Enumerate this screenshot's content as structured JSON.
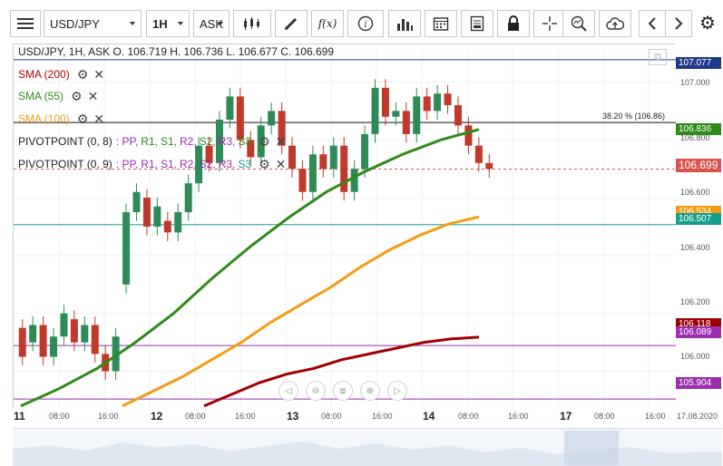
{
  "toolbar": {
    "menu_icon": "hamburger-icon",
    "symbol": "USD/JPY",
    "timeframe": "1H",
    "price_type": "ASK"
  },
  "header": {
    "info_line": "USD/JPY, 1H, ASK   O. 106.719 H. 106.736 L. 106.677 C. 106.699"
  },
  "indicators": [
    {
      "label": "SMA (200)",
      "color": "#b00000"
    },
    {
      "label": "SMA (55)",
      "color": "#2e8b1a"
    },
    {
      "label": "SMA (100)",
      "color": "#f39c12"
    }
  ],
  "pivots": [
    {
      "prefix": "PIVOTPOINT (0, 8)",
      "labels": [
        ": PP,",
        "R1,",
        "S1,",
        "R2,",
        "S2,",
        "R3,",
        "S3"
      ]
    },
    {
      "prefix": "PIVOTPOINT (0, 9)",
      "labels": [
        ": PP,",
        "R1,",
        "S1,",
        "R2,",
        "S2,",
        "R3,",
        "S3"
      ]
    }
  ],
  "pivot_colors": [
    "#9b2fae",
    "#2e8b1a",
    "#2e8b1a",
    "#9b2fae",
    "#2e8b1a",
    "#9b2fae",
    "#2e8b1a"
  ],
  "fib_label": "38.20 % (106.86)",
  "price_axis": [
    "107.000",
    "106.800",
    "106.600",
    "106.400",
    "106.200",
    "106.000"
  ],
  "price_tags": [
    {
      "text": "107.077",
      "bg": "#1f3a8a"
    },
    {
      "text": "106.836",
      "bg": "#2e8b1a"
    },
    {
      "text": "106.699",
      "bg": "#d9534f"
    },
    {
      "text": "106.534",
      "bg": "#f39c12"
    },
    {
      "text": "106.507",
      "bg": "#17a08b"
    },
    {
      "text": "106.118",
      "bg": "#a00000"
    },
    {
      "text": "106.089",
      "bg": "#9b2fae"
    },
    {
      "text": "105.904",
      "bg": "#9b2fae"
    }
  ],
  "time_axis": [
    {
      "text": "11",
      "big": true
    },
    {
      "text": "08:00"
    },
    {
      "text": "16:00"
    },
    {
      "text": "12",
      "big": true
    },
    {
      "text": "08:00"
    },
    {
      "text": "16:00"
    },
    {
      "text": "13",
      "big": true
    },
    {
      "text": "08:00"
    },
    {
      "text": "16:00"
    },
    {
      "text": "14",
      "big": true
    },
    {
      "text": "08:00"
    },
    {
      "text": "16:00"
    },
    {
      "text": "17",
      "big": true
    },
    {
      "text": "08:00"
    },
    {
      "text": "16:00"
    },
    {
      "text": "17.08.2020"
    }
  ],
  "chart_data": {
    "type": "candlestick",
    "title": "USD/JPY, 1H, ASK",
    "ylim": [
      105.87,
      107.13
    ],
    "reference_lines": [
      107.077,
      106.86,
      106.699,
      106.507,
      106.089,
      105.904
    ],
    "sma_200": [
      105.88,
      105.92,
      105.96,
      105.99,
      106.01,
      106.04,
      106.06,
      106.08,
      106.1,
      106.112,
      106.118
    ],
    "sma_100": [
      105.88,
      105.93,
      105.98,
      106.04,
      106.1,
      106.17,
      106.23,
      106.29,
      106.36,
      106.42,
      106.47,
      106.51,
      106.534
    ],
    "sma_55": [
      105.88,
      105.94,
      106.01,
      106.1,
      106.2,
      106.32,
      106.43,
      106.53,
      106.62,
      106.69,
      106.75,
      106.8,
      106.836
    ],
    "candles": [
      [
        106.15,
        106.05
      ],
      [
        106.1,
        106.16
      ],
      [
        106.16,
        106.05
      ],
      [
        106.05,
        106.12
      ],
      [
        106.12,
        106.2
      ],
      [
        106.18,
        106.1
      ],
      [
        106.1,
        106.16
      ],
      [
        106.16,
        106.06
      ],
      [
        106.06,
        106.0
      ],
      [
        106.0,
        106.12
      ],
      [
        106.3,
        106.55
      ],
      [
        106.55,
        106.62
      ],
      [
        106.6,
        106.5
      ],
      [
        106.5,
        106.57
      ],
      [
        106.52,
        106.48
      ],
      [
        106.48,
        106.55
      ],
      [
        106.55,
        106.65
      ],
      [
        106.65,
        106.78
      ],
      [
        106.78,
        106.72
      ],
      [
        106.72,
        106.87
      ],
      [
        106.87,
        106.95
      ],
      [
        106.95,
        106.8
      ],
      [
        106.8,
        106.74
      ],
      [
        106.74,
        106.85
      ],
      [
        106.85,
        106.9
      ],
      [
        106.9,
        106.78
      ],
      [
        106.78,
        106.7
      ],
      [
        106.7,
        106.62
      ],
      [
        106.62,
        106.75
      ],
      [
        106.75,
        106.7
      ],
      [
        106.7,
        106.78
      ],
      [
        106.78,
        106.62
      ],
      [
        106.62,
        106.7
      ],
      [
        106.7,
        106.82
      ],
      [
        106.82,
        106.98
      ],
      [
        106.98,
        106.88
      ],
      [
        106.88,
        106.9
      ],
      [
        106.9,
        106.82
      ],
      [
        106.82,
        106.95
      ],
      [
        106.95,
        106.9
      ],
      [
        106.9,
        106.96
      ],
      [
        106.96,
        106.92
      ],
      [
        106.92,
        106.85
      ],
      [
        106.85,
        106.78
      ],
      [
        106.78,
        106.72
      ],
      [
        106.72,
        106.7
      ]
    ]
  }
}
